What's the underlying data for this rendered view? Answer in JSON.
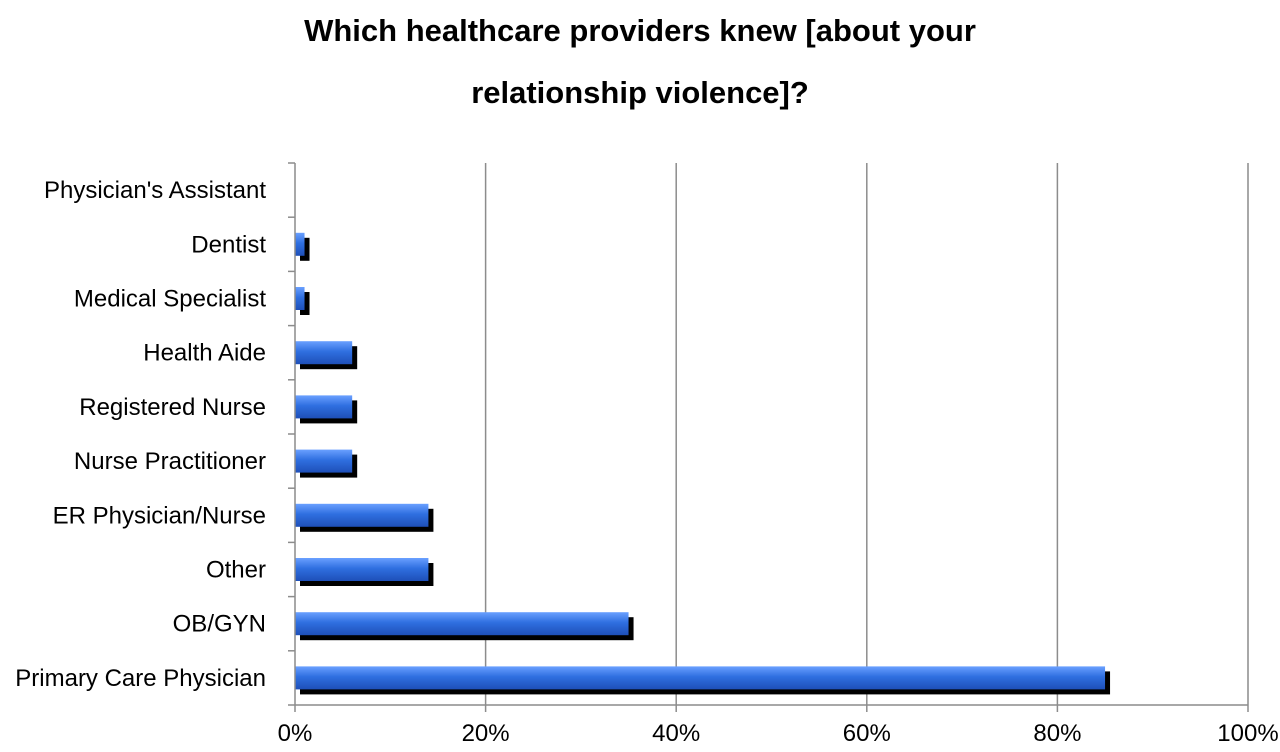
{
  "chart_data": {
    "type": "bar",
    "orientation": "horizontal",
    "title": "Which healthcare providers knew [about your relationship violence]?",
    "categories": [
      "Physician's Assistant",
      "Dentist",
      "Medical Specialist",
      "Health Aide",
      "Registered Nurse",
      "Nurse Practitioner",
      "ER Physician/Nurse",
      "Other",
      "OB/GYN",
      "Primary Care Physician"
    ],
    "values": [
      0,
      1,
      1,
      6,
      6,
      6,
      14,
      14,
      35,
      85
    ],
    "xlim": [
      0,
      100
    ],
    "xticks": [
      "0%",
      "20%",
      "40%",
      "60%",
      "80%",
      "100%"
    ],
    "xlabel": "",
    "ylabel": "",
    "grid": "vertical",
    "legend": "none",
    "bar_color": "#2f6fe0",
    "shadow_color": "#000000",
    "grid_color": "#8c8c8c"
  }
}
